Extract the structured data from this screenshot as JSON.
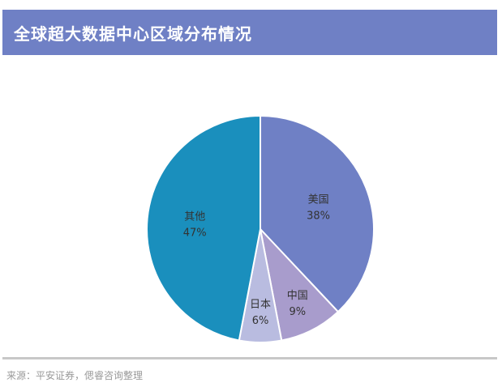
{
  "title": "全球超大数据中心区域分布情况",
  "source": "来源：平安证券，偲睿咨询整理",
  "chart_data": {
    "type": "pie",
    "title": "全球超大数据中心区域分布情况",
    "unit": "%",
    "slices": [
      {
        "name": "美国",
        "value": 38,
        "label": "38%",
        "color": "#6f80c5"
      },
      {
        "name": "中国",
        "value": 9,
        "label": "9%",
        "color": "#a89ccc"
      },
      {
        "name": "日本",
        "value": 6,
        "label": "6%",
        "color": "#b9bce0"
      },
      {
        "name": "其他",
        "value": 47,
        "label": "47%",
        "color": "#1a8fbd"
      }
    ],
    "start_angle_deg": 0,
    "direction": "clockwise",
    "legend": "none"
  }
}
